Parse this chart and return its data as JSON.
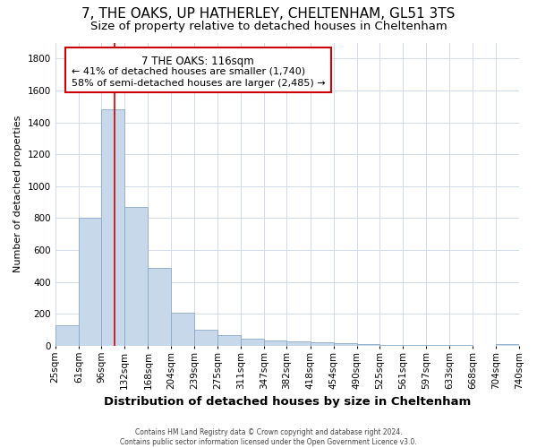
{
  "title": "7, THE OAKS, UP HATHERLEY, CHELTENHAM, GL51 3TS",
  "subtitle": "Size of property relative to detached houses in Cheltenham",
  "xlabel": "Distribution of detached houses by size in Cheltenham",
  "ylabel": "Number of detached properties",
  "footer_line1": "Contains HM Land Registry data © Crown copyright and database right 2024.",
  "footer_line2": "Contains public sector information licensed under the Open Government Licence v3.0.",
  "bar_edges": [
    25,
    61,
    96,
    132,
    168,
    204,
    239,
    275,
    311,
    347,
    382,
    418,
    454,
    490,
    525,
    561,
    597,
    633,
    668,
    704,
    740
  ],
  "bar_heights": [
    130,
    800,
    1480,
    870,
    490,
    205,
    100,
    65,
    45,
    35,
    28,
    20,
    15,
    10,
    8,
    5,
    4,
    3,
    2,
    10
  ],
  "bar_color": "#c8d8eb",
  "bar_edge_color": "#8aaac8",
  "property_size": 116,
  "red_line_color": "#cc0000",
  "annotation_line1": "7 THE OAKS: 116sqm",
  "annotation_line2": "← 41% of detached houses are smaller (1,740)",
  "annotation_line3": "58% of semi-detached houses are larger (2,485) →",
  "annotation_box_color": "#ffffff",
  "annotation_box_edge": "#cc0000",
  "ylim": [
    0,
    1900
  ],
  "yticks": [
    0,
    200,
    400,
    600,
    800,
    1000,
    1200,
    1400,
    1600,
    1800
  ],
  "bg_color": "#ffffff",
  "grid_color": "#d0dce8",
  "title_fontsize": 11,
  "subtitle_fontsize": 9.5,
  "tick_fontsize": 7.5,
  "ylabel_fontsize": 8,
  "xlabel_fontsize": 9.5
}
